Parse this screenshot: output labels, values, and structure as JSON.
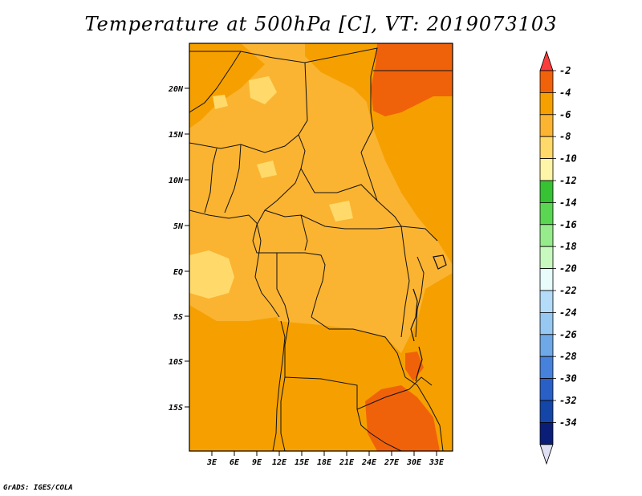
{
  "title": "Temperature at 500hPa [C], VT: 2019073103",
  "credit": "GrADS: IGES/COLA",
  "map": {
    "lat_ticks": [
      "20N",
      "15N",
      "10N",
      "5N",
      "EQ",
      "5S",
      "10S",
      "15S"
    ],
    "lon_ticks": [
      "3E",
      "6E",
      "9E",
      "12E",
      "15E",
      "18E",
      "21E",
      "24E",
      "27E",
      "30E",
      "33E"
    ]
  },
  "colorbar": {
    "labels": [
      "-2",
      "-4",
      "-6",
      "-8",
      "-10",
      "-12",
      "-14",
      "-16",
      "-18",
      "-20",
      "-22",
      "-24",
      "-26",
      "-28",
      "-30",
      "-32",
      "-34"
    ],
    "colors": [
      "#fa3c3c",
      "#f0620a",
      "#f5a000",
      "#fab432",
      "#ffda6b",
      "#fff5a8",
      "#36c232",
      "#5ad652",
      "#96ec8a",
      "#c8fac0",
      "#e8fcfc",
      "#b4dcf8",
      "#96c8f2",
      "#6ea8e6",
      "#4682dc",
      "#2860c8",
      "#1446a8",
      "#0a1e78",
      "#e0e0f4"
    ]
  }
}
